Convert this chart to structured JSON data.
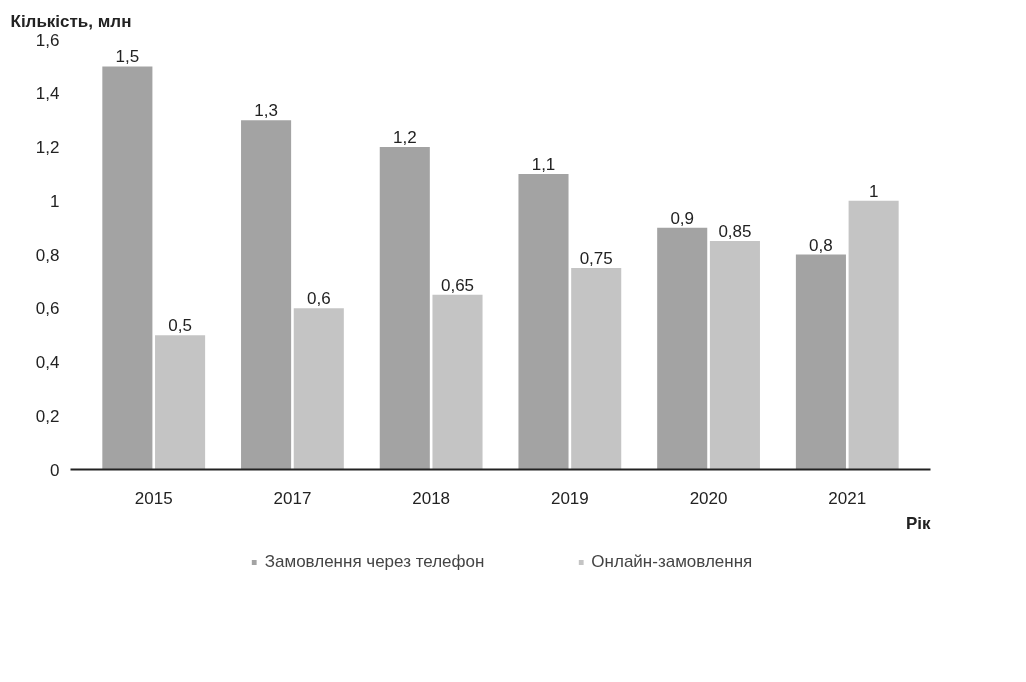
{
  "chart_data": {
    "type": "bar",
    "ylabel": "Кількість, млн",
    "xlabel": "Рік",
    "categories": [
      "2015",
      "2017",
      "2018",
      "2019",
      "2020",
      "2021"
    ],
    "series": [
      {
        "name": "Замовлення через телефон",
        "color": "#a3a3a3",
        "values": [
          1.5,
          1.3,
          1.2,
          1.1,
          0.9,
          0.8
        ],
        "value_labels": [
          "1,5",
          "1,3",
          "1,2",
          "1,1",
          "0,9",
          "0,8"
        ]
      },
      {
        "name": "Онлайн-замовлення",
        "color": "#c4c4c4",
        "values": [
          0.5,
          0.6,
          0.65,
          0.75,
          0.85,
          1
        ],
        "value_labels": [
          "0,5",
          "0,6",
          "0,65",
          "0,75",
          "0,85",
          "1"
        ]
      }
    ],
    "ylim": [
      0,
      1.6
    ],
    "yticks": [
      0,
      {
        "value": 0.2,
        "label": "0,2"
      },
      {
        "value": 0.4,
        "label": "0,4"
      },
      {
        "value": 0.6,
        "label": "0,6"
      },
      {
        "value": 0.8,
        "label": "0,8"
      },
      1,
      {
        "value": 1.2,
        "label": "1,2"
      },
      {
        "value": 1.4,
        "label": "1,4"
      },
      {
        "value": 1.6,
        "label": "1,6"
      }
    ],
    "grid": false,
    "legend": "bottom"
  }
}
